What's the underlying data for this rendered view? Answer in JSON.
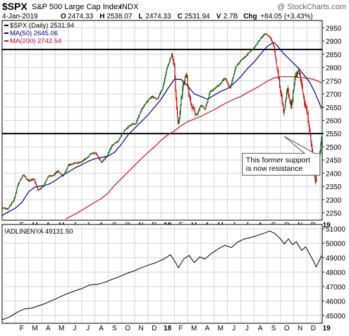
{
  "header": {
    "symbol": "$SPX",
    "name": "S&P 500 Large Cap Index",
    "exchange": "INDX",
    "watermark": "@ StockCharts.com",
    "date": "4-Jan-2019",
    "quote": [
      {
        "label": "O",
        "value": "2474.33"
      },
      {
        "label": "H",
        "value": "2538.07"
      },
      {
        "label": "L",
        "value": "2474.33"
      },
      {
        "label": "C",
        "value": "2531.94"
      },
      {
        "label": "V",
        "value": "2.7B"
      },
      {
        "label": "Chg",
        "value": "+84.05 (+3.43%)"
      }
    ]
  },
  "colors": {
    "up": "#006600",
    "down": "#cc0000",
    "ma50": "#00008b",
    "ma200": "#d0103a",
    "grid": "#d4d4d4",
    "ad_line": "#000000"
  },
  "chart_data": [
    {
      "type": "candlestick",
      "legend": [
        {
          "text": "$SPX (Daily) 2531.94",
          "swatch": "#000000"
        },
        {
          "text": "MA(50) 2645.06",
          "swatch": "#00008b"
        },
        {
          "text": "MA(200) 2742.54",
          "swatch": "#d0103a"
        }
      ],
      "legend_position": "top-left",
      "grid": true,
      "ylim": [
        2225,
        2975
      ],
      "y_ticks": [
        2250,
        2300,
        2350,
        2400,
        2450,
        2500,
        2550,
        2600,
        2650,
        2700,
        2750,
        2800,
        2850,
        2900,
        2950
      ],
      "x_range_months": [
        0,
        24.15
      ],
      "x_ticks": [
        {
          "label": "F",
          "m": 1
        },
        {
          "label": "M",
          "m": 2
        },
        {
          "label": "A",
          "m": 3
        },
        {
          "label": "M",
          "m": 4
        },
        {
          "label": "J",
          "m": 5
        },
        {
          "label": "J",
          "m": 6
        },
        {
          "label": "A",
          "m": 7
        },
        {
          "label": "S",
          "m": 8
        },
        {
          "label": "O",
          "m": 9
        },
        {
          "label": "N",
          "m": 10
        },
        {
          "label": "D",
          "m": 11
        },
        {
          "label": "18",
          "m": 12,
          "bold": true
        },
        {
          "label": "F",
          "m": 13
        },
        {
          "label": "M",
          "m": 14
        },
        {
          "label": "A",
          "m": 15
        },
        {
          "label": "M",
          "m": 16
        },
        {
          "label": "J",
          "m": 17
        },
        {
          "label": "J",
          "m": 18
        },
        {
          "label": "A",
          "m": 19
        },
        {
          "label": "S",
          "m": 20
        },
        {
          "label": "O",
          "m": 21
        },
        {
          "label": "N",
          "m": 22
        },
        {
          "label": "D",
          "m": 23
        },
        {
          "label": "19",
          "m": 24,
          "bold": true
        }
      ],
      "price_path": [
        [
          0.0,
          2270
        ],
        [
          0.4,
          2265
        ],
        [
          0.9,
          2300
        ],
        [
          1.2,
          2360
        ],
        [
          1.6,
          2395
        ],
        [
          2.0,
          2370
        ],
        [
          2.4,
          2380
        ],
        [
          2.7,
          2335
        ],
        [
          3.1,
          2350
        ],
        [
          3.5,
          2390
        ],
        [
          3.8,
          2390
        ],
        [
          4.2,
          2410
        ],
        [
          4.6,
          2390
        ],
        [
          5.0,
          2430
        ],
        [
          5.5,
          2440
        ],
        [
          5.9,
          2440
        ],
        [
          6.3,
          2455
        ],
        [
          6.7,
          2475
        ],
        [
          7.1,
          2475
        ],
        [
          7.5,
          2440
        ],
        [
          7.9,
          2465
        ],
        [
          8.3,
          2505
        ],
        [
          8.7,
          2520
        ],
        [
          9.2,
          2560
        ],
        [
          9.6,
          2580
        ],
        [
          10.1,
          2590
        ],
        [
          10.5,
          2640
        ],
        [
          10.9,
          2670
        ],
        [
          11.3,
          2690
        ],
        [
          11.7,
          2680
        ],
        [
          12.1,
          2720
        ],
        [
          12.4,
          2790
        ],
        [
          12.8,
          2850
        ],
        [
          13.0,
          2800
        ],
        [
          13.15,
          2660
        ],
        [
          13.3,
          2580
        ],
        [
          13.6,
          2720
        ],
        [
          13.9,
          2780
        ],
        [
          14.1,
          2690
        ],
        [
          14.4,
          2640
        ],
        [
          14.7,
          2620
        ],
        [
          15.0,
          2660
        ],
        [
          15.3,
          2640
        ],
        [
          15.7,
          2710
        ],
        [
          16.0,
          2720
        ],
        [
          16.4,
          2735
        ],
        [
          16.8,
          2760
        ],
        [
          17.2,
          2720
        ],
        [
          17.6,
          2800
        ],
        [
          17.9,
          2820
        ],
        [
          18.3,
          2840
        ],
        [
          18.7,
          2860
        ],
        [
          19.1,
          2880
        ],
        [
          19.5,
          2910
        ],
        [
          19.85,
          2930
        ],
        [
          20.2,
          2915
        ],
        [
          20.5,
          2880
        ],
        [
          20.8,
          2780
        ],
        [
          21.05,
          2700
        ],
        [
          21.25,
          2620
        ],
        [
          21.5,
          2720
        ],
        [
          21.8,
          2650
        ],
        [
          22.1,
          2760
        ],
        [
          22.4,
          2790
        ],
        [
          22.7,
          2700
        ],
        [
          22.95,
          2640
        ],
        [
          23.1,
          2600
        ],
        [
          23.3,
          2520
        ],
        [
          23.5,
          2430
        ],
        [
          23.65,
          2360
        ],
        [
          23.8,
          2450
        ],
        [
          24.0,
          2490
        ],
        [
          24.1,
          2532
        ]
      ],
      "ma50": {
        "label": "MA(50)",
        "points": [
          [
            0.0,
            2240
          ],
          [
            0.5,
            2255
          ],
          [
            1.0,
            2268
          ],
          [
            1.5,
            2290
          ],
          [
            2.0,
            2330
          ],
          [
            2.5,
            2348
          ],
          [
            3.0,
            2352
          ],
          [
            3.5,
            2358
          ],
          [
            4.0,
            2372
          ],
          [
            4.5,
            2390
          ],
          [
            5.0,
            2405
          ],
          [
            5.5,
            2420
          ],
          [
            6.0,
            2432
          ],
          [
            6.5,
            2445
          ],
          [
            7.0,
            2455
          ],
          [
            7.5,
            2460
          ],
          [
            8.0,
            2465
          ],
          [
            8.5,
            2480
          ],
          [
            9.0,
            2510
          ],
          [
            9.5,
            2545
          ],
          [
            10.0,
            2570
          ],
          [
            10.5,
            2595
          ],
          [
            11.0,
            2620
          ],
          [
            11.5,
            2650
          ],
          [
            12.0,
            2680
          ],
          [
            12.5,
            2720
          ],
          [
            13.0,
            2755
          ],
          [
            13.5,
            2755
          ],
          [
            14.0,
            2730
          ],
          [
            14.5,
            2700
          ],
          [
            15.0,
            2690
          ],
          [
            15.5,
            2680
          ],
          [
            16.0,
            2695
          ],
          [
            16.5,
            2710
          ],
          [
            17.0,
            2720
          ],
          [
            17.5,
            2740
          ],
          [
            18.0,
            2765
          ],
          [
            18.5,
            2795
          ],
          [
            19.0,
            2820
          ],
          [
            19.5,
            2850
          ],
          [
            20.0,
            2880
          ],
          [
            20.5,
            2895
          ],
          [
            20.8,
            2880
          ],
          [
            21.2,
            2855
          ],
          [
            21.6,
            2835
          ],
          [
            22.0,
            2815
          ],
          [
            22.4,
            2795
          ],
          [
            22.8,
            2770
          ],
          [
            23.2,
            2745
          ],
          [
            23.6,
            2705
          ],
          [
            24.1,
            2645
          ]
        ]
      },
      "ma200": {
        "label": "MA(200)",
        "points": [
          [
            4.8,
            2228
          ],
          [
            5.5,
            2245
          ],
          [
            6.0,
            2260
          ],
          [
            6.5,
            2275
          ],
          [
            7.0,
            2290
          ],
          [
            7.5,
            2305
          ],
          [
            8.0,
            2325
          ],
          [
            8.5,
            2355
          ],
          [
            9.0,
            2380
          ],
          [
            9.5,
            2405
          ],
          [
            10.0,
            2430
          ],
          [
            10.5,
            2455
          ],
          [
            11.0,
            2478
          ],
          [
            11.5,
            2500
          ],
          [
            12.0,
            2525
          ],
          [
            12.5,
            2545
          ],
          [
            13.0,
            2560
          ],
          [
            13.5,
            2580
          ],
          [
            14.0,
            2595
          ],
          [
            14.5,
            2605
          ],
          [
            15.0,
            2615
          ],
          [
            15.5,
            2628
          ],
          [
            16.0,
            2640
          ],
          [
            16.5,
            2655
          ],
          [
            17.0,
            2668
          ],
          [
            17.5,
            2680
          ],
          [
            18.0,
            2690
          ],
          [
            18.5,
            2705
          ],
          [
            19.0,
            2718
          ],
          [
            19.5,
            2732
          ],
          [
            20.0,
            2748
          ],
          [
            20.5,
            2760
          ],
          [
            21.0,
            2765
          ],
          [
            21.5,
            2765
          ],
          [
            22.0,
            2765
          ],
          [
            22.5,
            2762
          ],
          [
            23.0,
            2760
          ],
          [
            23.5,
            2755
          ],
          [
            24.1,
            2742
          ]
        ]
      },
      "horizontal_lines": [
        2868,
        2550
      ],
      "annotation": {
        "lines": [
          "This former support",
          "is now resistance"
        ],
        "box_at": {
          "m": 18.5,
          "y": 2470
        },
        "pointer_to": {
          "m": 21.3,
          "y": 2550
        }
      }
    },
    {
      "type": "line",
      "legend": [
        {
          "text": "!ADLINENYA 49131.50",
          "swatch": "#000000"
        }
      ],
      "legend_position": "top-left",
      "grid": true,
      "ylim": [
        44500,
        51200
      ],
      "y_ticks": [
        45000,
        46000,
        47000,
        48000,
        49000,
        50000,
        51000
      ],
      "x_range_months": [
        0,
        24.15
      ],
      "x_ticks": [
        {
          "label": "F",
          "m": 1
        },
        {
          "label": "M",
          "m": 2
        },
        {
          "label": "A",
          "m": 3
        },
        {
          "label": "M",
          "m": 4
        },
        {
          "label": "J",
          "m": 5
        },
        {
          "label": "J",
          "m": 6
        },
        {
          "label": "A",
          "m": 7
        },
        {
          "label": "S",
          "m": 8
        },
        {
          "label": "O",
          "m": 9
        },
        {
          "label": "N",
          "m": 10
        },
        {
          "label": "D",
          "m": 11
        },
        {
          "label": "18",
          "m": 12,
          "bold": true
        },
        {
          "label": "F",
          "m": 13
        },
        {
          "label": "M",
          "m": 14
        },
        {
          "label": "A",
          "m": 15
        },
        {
          "label": "M",
          "m": 16
        },
        {
          "label": "J",
          "m": 17
        },
        {
          "label": "J",
          "m": 18
        },
        {
          "label": "A",
          "m": 19
        },
        {
          "label": "S",
          "m": 20
        },
        {
          "label": "O",
          "m": 21
        },
        {
          "label": "N",
          "m": 22
        },
        {
          "label": "D",
          "m": 23
        },
        {
          "label": "19",
          "m": 24,
          "bold": true
        }
      ],
      "points": [
        [
          0.0,
          44700
        ],
        [
          0.6,
          44900
        ],
        [
          1.2,
          45250
        ],
        [
          1.7,
          45450
        ],
        [
          2.2,
          45500
        ],
        [
          2.7,
          45650
        ],
        [
          3.2,
          45800
        ],
        [
          3.8,
          46050
        ],
        [
          4.3,
          46250
        ],
        [
          4.9,
          46500
        ],
        [
          5.5,
          46700
        ],
        [
          6.0,
          46850
        ],
        [
          6.6,
          47100
        ],
        [
          7.2,
          47150
        ],
        [
          7.8,
          47300
        ],
        [
          8.3,
          47500
        ],
        [
          8.9,
          47700
        ],
        [
          9.4,
          47900
        ],
        [
          10.0,
          48100
        ],
        [
          10.5,
          48300
        ],
        [
          11.1,
          48500
        ],
        [
          11.6,
          48650
        ],
        [
          12.2,
          48900
        ],
        [
          12.7,
          49200
        ],
        [
          13.1,
          48650
        ],
        [
          13.3,
          48300
        ],
        [
          13.7,
          48900
        ],
        [
          14.1,
          49150
        ],
        [
          14.5,
          48650
        ],
        [
          14.9,
          49050
        ],
        [
          15.3,
          48900
        ],
        [
          15.8,
          49300
        ],
        [
          16.3,
          49600
        ],
        [
          16.8,
          49850
        ],
        [
          17.3,
          49700
        ],
        [
          17.8,
          50100
        ],
        [
          18.3,
          50300
        ],
        [
          18.8,
          50400
        ],
        [
          19.3,
          50550
        ],
        [
          19.8,
          50700
        ],
        [
          20.2,
          50850
        ],
        [
          20.6,
          50650
        ],
        [
          21.0,
          50300
        ],
        [
          21.3,
          49950
        ],
        [
          21.6,
          50300
        ],
        [
          21.9,
          49900
        ],
        [
          22.2,
          50100
        ],
        [
          22.6,
          49500
        ],
        [
          22.9,
          49750
        ],
        [
          23.2,
          49250
        ],
        [
          23.5,
          48750
        ],
        [
          23.7,
          48350
        ],
        [
          23.9,
          48750
        ],
        [
          24.1,
          49131.5
        ]
      ]
    }
  ]
}
